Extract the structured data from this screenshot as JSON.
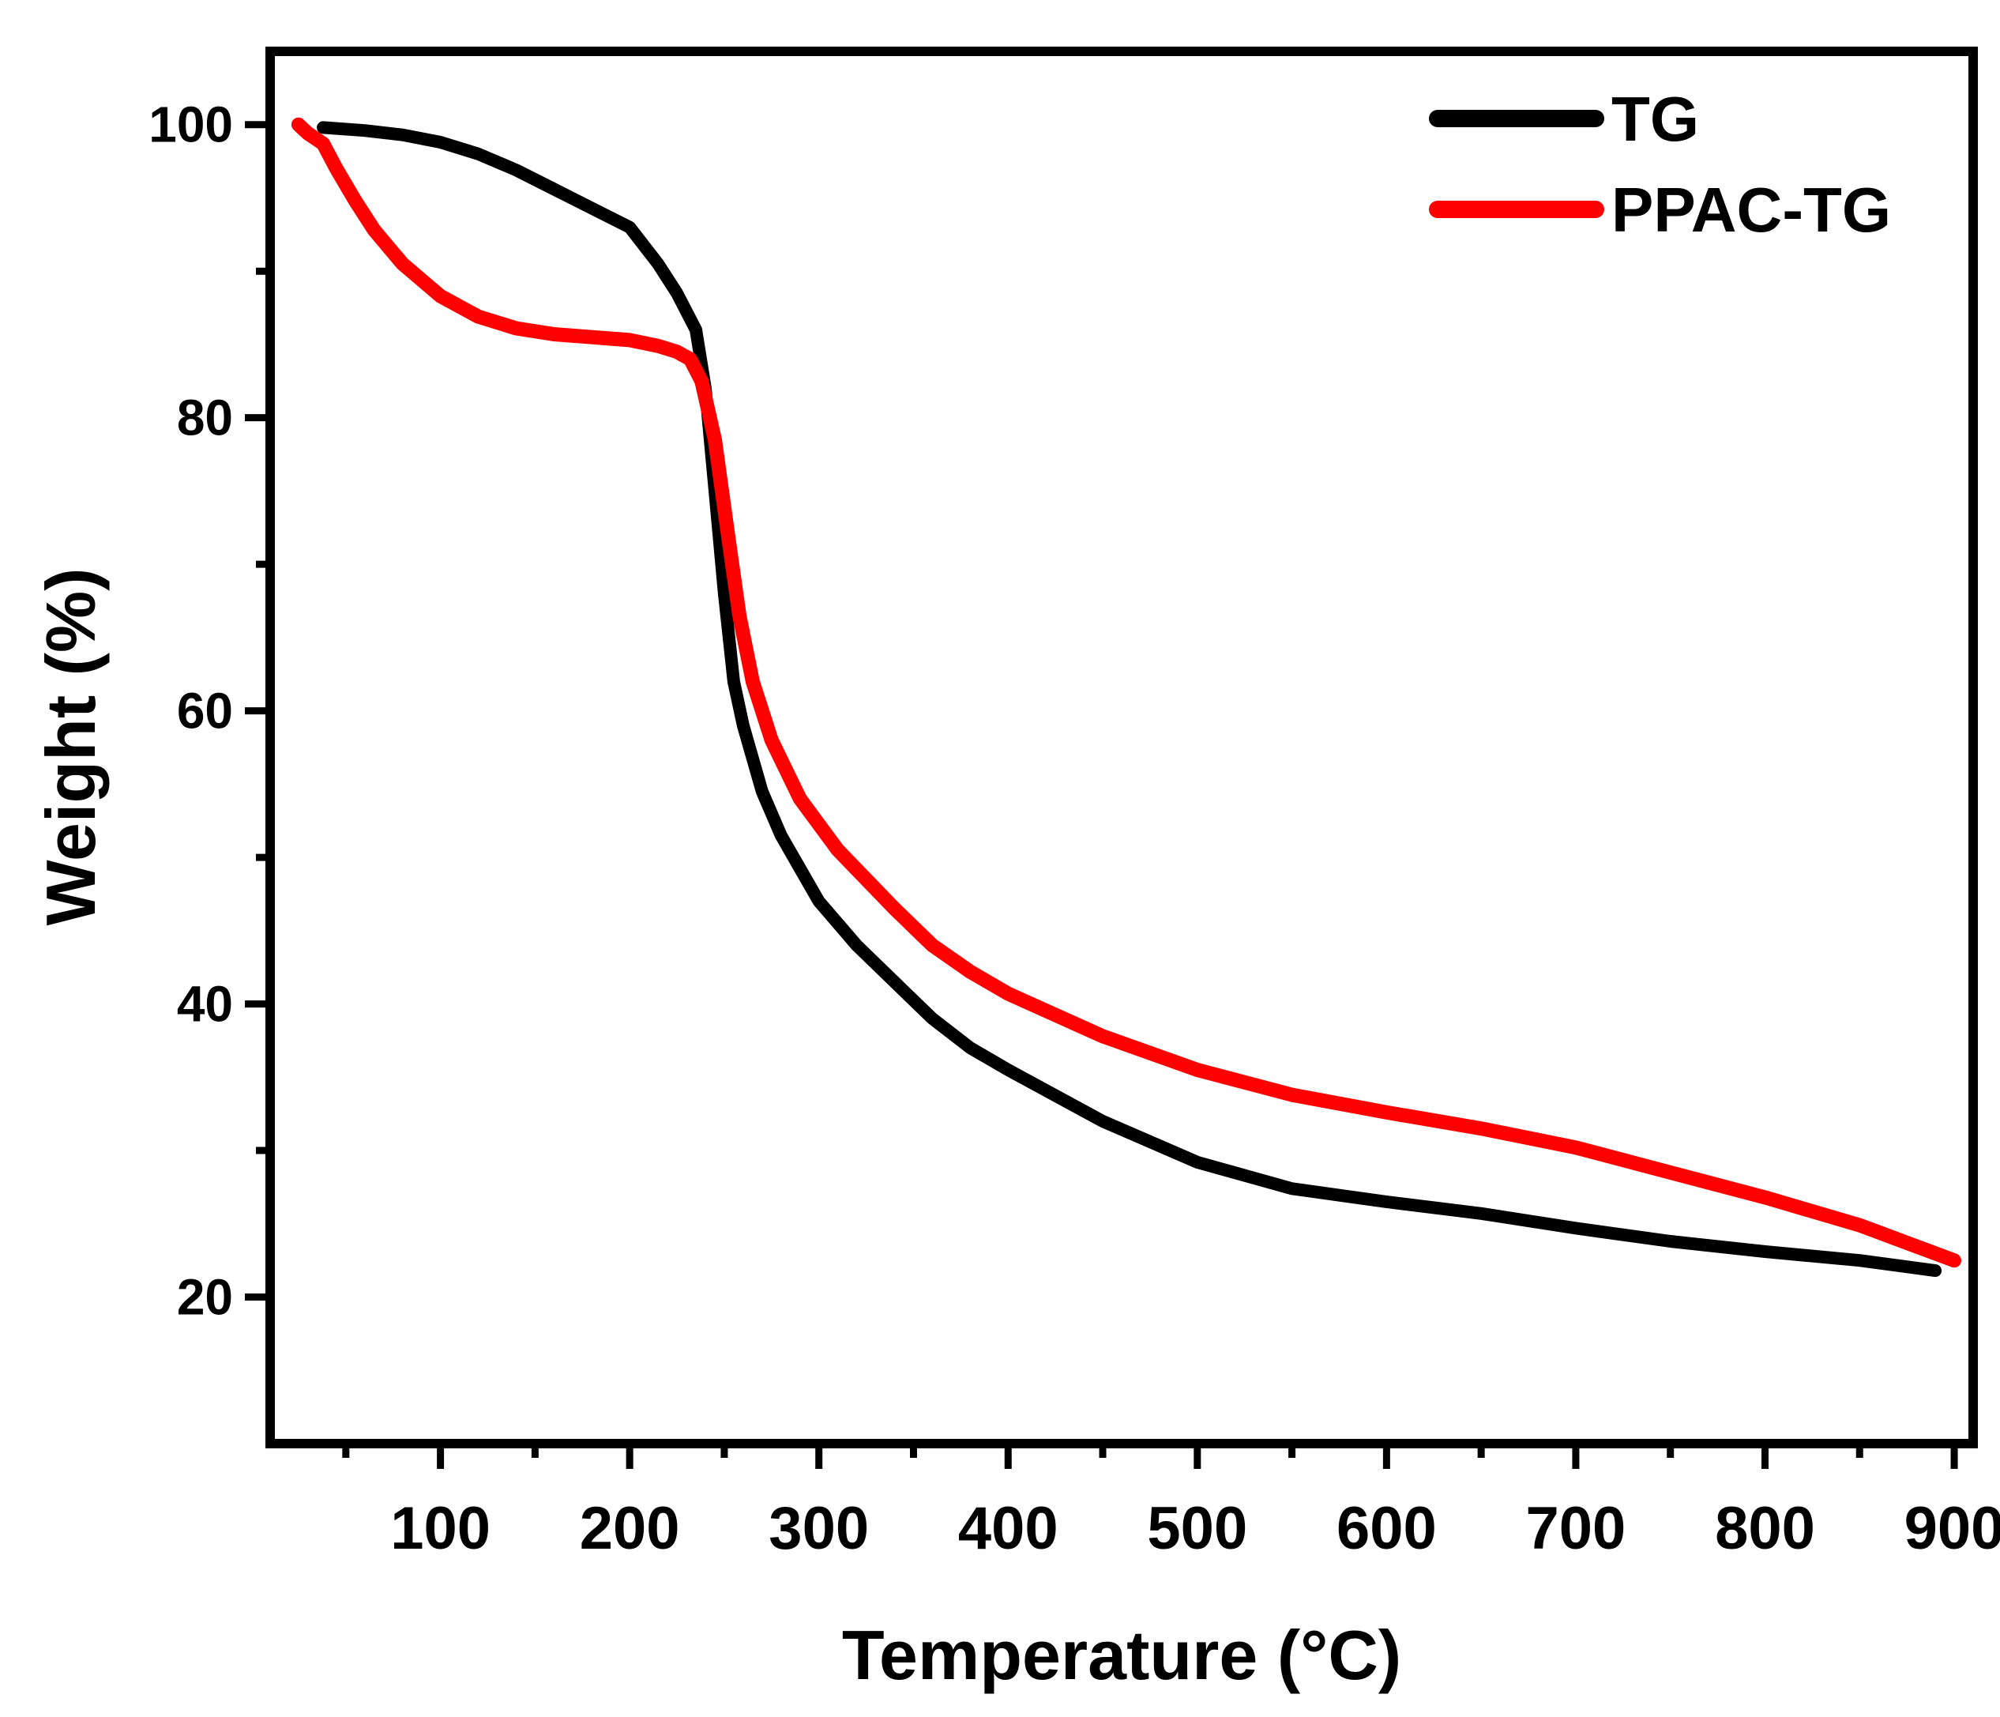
{
  "chart_data": {
    "type": "line",
    "title": "",
    "xlabel": "Temperature (°C)",
    "ylabel": "Weight (%)",
    "xlim": [
      10,
      910
    ],
    "ylim": [
      10,
      105
    ],
    "xticks": [
      100,
      200,
      300,
      400,
      500,
      600,
      700,
      800,
      900
    ],
    "xtick_labels": [
      "100",
      "200",
      "300",
      "400",
      "500",
      "600",
      "700",
      "800",
      "900"
    ],
    "yticks": [
      20,
      40,
      60,
      80,
      100
    ],
    "ytick_labels": [
      "20",
      "40",
      "60",
      "80",
      "100"
    ],
    "grid": false,
    "legend_position": "top-right",
    "series": [
      {
        "name": "TG",
        "color": "#000000",
        "x": [
          38,
          60,
          80,
          100,
          120,
          140,
          160,
          180,
          200,
          215,
          225,
          235,
          240,
          245,
          250,
          255,
          260,
          270,
          280,
          300,
          320,
          340,
          360,
          380,
          400,
          450,
          500,
          550,
          600,
          650,
          700,
          750,
          800,
          850,
          890
        ],
        "y": [
          99.8,
          99.6,
          99.3,
          98.8,
          98.0,
          96.9,
          95.6,
          94.3,
          93.0,
          90.5,
          88.5,
          86.0,
          82.0,
          75.0,
          68.0,
          62.0,
          59.0,
          54.5,
          51.5,
          47.0,
          44.0,
          41.5,
          39.0,
          37.0,
          35.5,
          32.0,
          29.2,
          27.4,
          26.5,
          25.7,
          24.7,
          23.8,
          23.1,
          22.5,
          21.8
        ]
      },
      {
        "name": "PPAC-TG",
        "color": "#ff0000",
        "x": [
          25,
          30,
          38,
          45,
          55,
          65,
          80,
          100,
          120,
          140,
          160,
          180,
          200,
          215,
          225,
          232,
          238,
          245,
          252,
          258,
          265,
          275,
          290,
          310,
          340,
          360,
          380,
          400,
          450,
          500,
          550,
          600,
          650,
          700,
          750,
          800,
          850,
          900
        ],
        "y": [
          100.0,
          99.4,
          98.7,
          97.0,
          94.8,
          92.8,
          90.5,
          88.3,
          86.9,
          86.1,
          85.7,
          85.5,
          85.3,
          84.9,
          84.5,
          84.0,
          82.5,
          78.5,
          72.0,
          66.5,
          62.0,
          58.0,
          54.0,
          50.5,
          46.5,
          44.0,
          42.2,
          40.7,
          37.8,
          35.5,
          33.8,
          32.6,
          31.5,
          30.2,
          28.5,
          26.8,
          24.9,
          22.5
        ]
      }
    ]
  }
}
